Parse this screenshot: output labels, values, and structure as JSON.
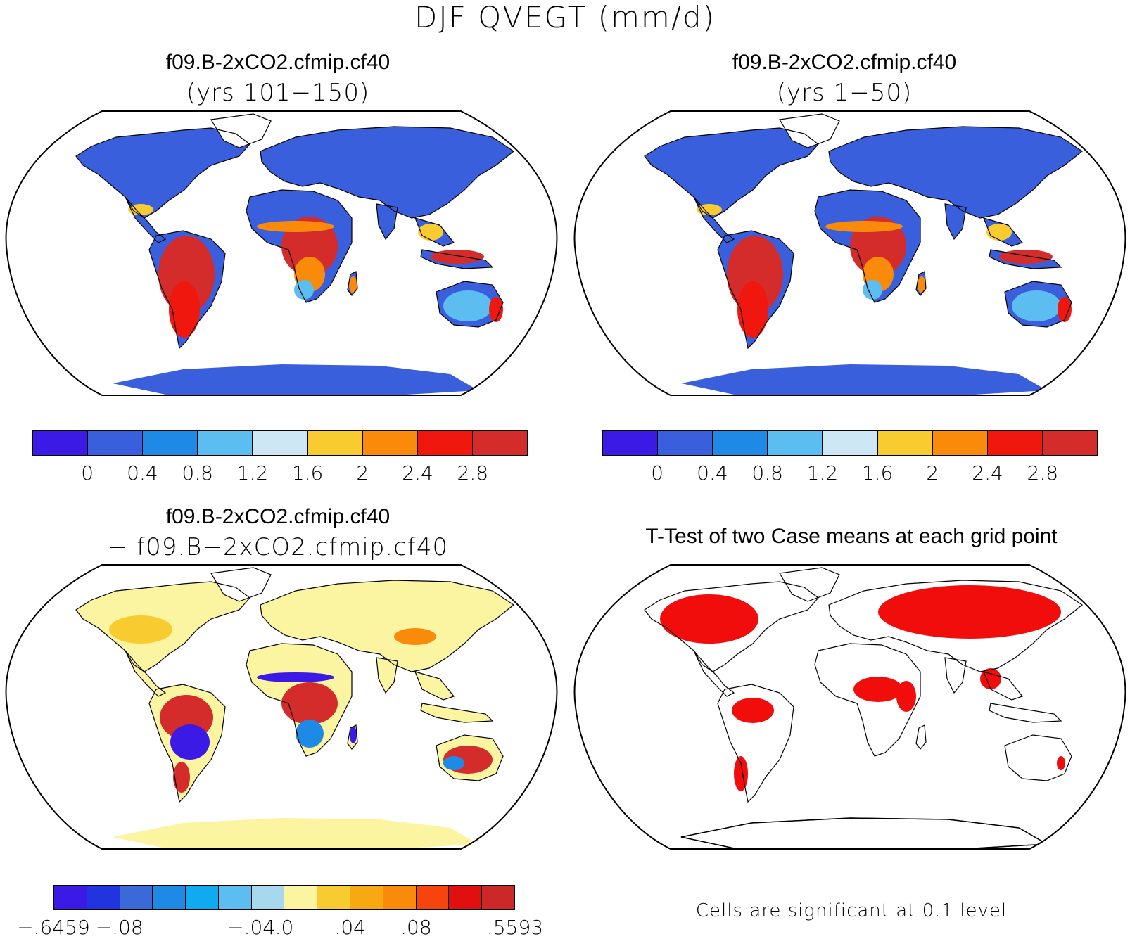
{
  "title": "DJF QVEGT (mm/d)",
  "panels": {
    "top_left": {
      "title": "f09.B-2xCO2.cfmip.cf40",
      "subtitle": "(yrs 101−150)"
    },
    "top_right": {
      "title": "f09.B-2xCO2.cfmip.cf40",
      "subtitle": "(yrs 1−50)"
    },
    "bottom_left": {
      "title": "f09.B-2xCO2.cfmip.cf40",
      "subtitle": "− f09.B−2xCO2.cfmip.cf40"
    },
    "bottom_right": {
      "title": "T-Test of two Case means at each grid point",
      "note": "Cells are significant at 0.1 level"
    }
  },
  "colorbar_abs": {
    "colors": [
      "#3b1ae6",
      "#3a5fdc",
      "#1f8ae6",
      "#5bbdf0",
      "#cde8f4",
      "#f8cc30",
      "#f98a0a",
      "#f0170f",
      "#d42b2b"
    ],
    "labels": [
      "0",
      "0.4",
      "0.8",
      "1.2",
      "1.6",
      "2",
      "2.4",
      "2.8"
    ]
  },
  "colorbar_diff": {
    "colors": [
      "#3b1ae6",
      "#2035e0",
      "#3a6ad8",
      "#1f8ae6",
      "#10aaf0",
      "#5bbdf0",
      "#a8d8ee",
      "#fbf4a0",
      "#f8cc30",
      "#f8a810",
      "#f98a0a",
      "#f5450c",
      "#e01010",
      "#cc2828"
    ],
    "labels": [
      "−.6459",
      "−.08",
      "−.04",
      ".0",
      ".04",
      ".08",
      ".5593"
    ]
  },
  "map_colors": {
    "land_low": "#3a5fdc",
    "tropic_high": "#d42b2b",
    "tropic_mid": "#f0170f",
    "orange": "#f98a0a",
    "yellow": "#f8cc30",
    "lightblue": "#5bbdf0",
    "diff_bg": "#fbf4a0",
    "diff_pos": "#d42b2b",
    "diff_neg": "#3b1ae6",
    "sig": "#f20d0d"
  }
}
